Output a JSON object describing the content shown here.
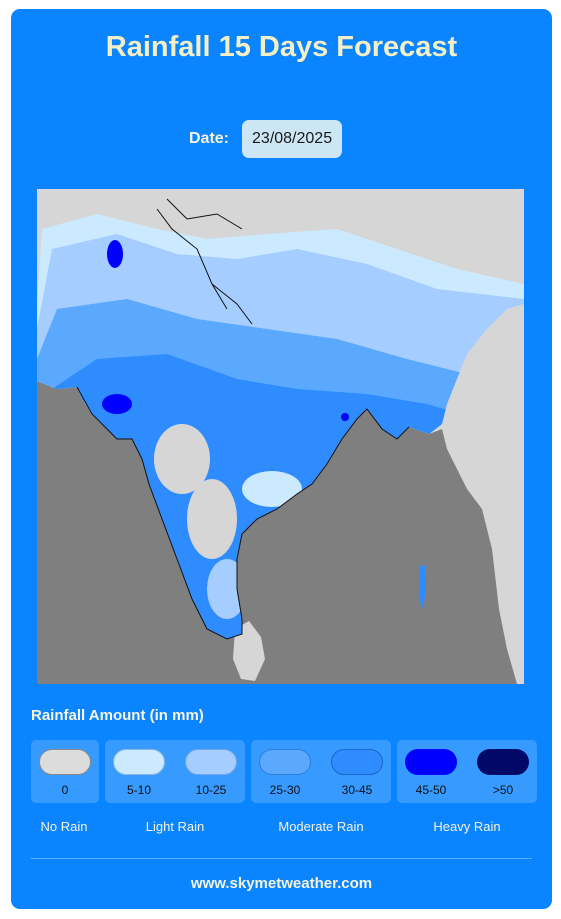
{
  "title": "Rainfall 15 Days Forecast",
  "date": {
    "label": "Date:",
    "value": "23/08/2025"
  },
  "legend": {
    "title": "Rainfall Amount (in mm)",
    "groups": [
      {
        "name": "No Rain",
        "items": [
          {
            "label": "0",
            "color": "#dcdcdc"
          }
        ]
      },
      {
        "name": "Light Rain",
        "items": [
          {
            "label": "5-10",
            "color": "#cbeaff"
          },
          {
            "label": "10-25",
            "color": "#a6cdff"
          }
        ]
      },
      {
        "name": "Moderate Rain",
        "items": [
          {
            "label": "25-30",
            "color": "#5aa9ff"
          },
          {
            "label": "30-45",
            "color": "#2f8cff"
          }
        ]
      },
      {
        "name": "Heavy Rain",
        "items": [
          {
            "label": "45-50",
            "color": "#0000ff"
          },
          {
            "label": ">50",
            "color": "#000a66"
          }
        ]
      }
    ]
  },
  "map": {
    "land_color": "#d6d6d6",
    "sea_color": "#7f7f7f",
    "border_color": "#111111"
  },
  "footer": {
    "site": "www.skymetweather.com"
  }
}
